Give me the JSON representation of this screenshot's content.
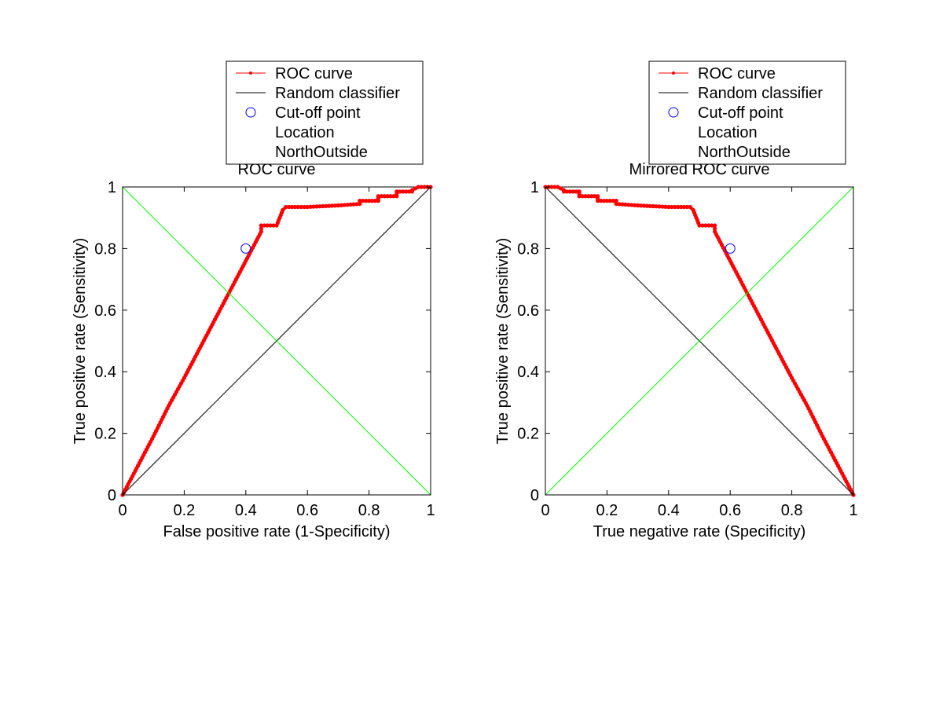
{
  "figure": {
    "background": "#ffffff"
  },
  "chart_data": [
    {
      "type": "line",
      "title": "ROC curve",
      "xlabel": "False positive rate (1-Specificity)",
      "ylabel": "True positive rate (Sensitivity)",
      "xlim": [
        0,
        1
      ],
      "ylim": [
        0,
        1
      ],
      "xticks": [
        0,
        0.2,
        0.4,
        0.6,
        0.8,
        1
      ],
      "xtick_labels": [
        "0",
        "0.2",
        "0.4",
        "0.6",
        "0.8",
        "1"
      ],
      "yticks": [
        0,
        0.2,
        0.4,
        0.6,
        0.8,
        1
      ],
      "ytick_labels": [
        "0",
        "0.2",
        "0.4",
        "0.6",
        "0.8",
        "1"
      ],
      "grid": false,
      "legend": {
        "placement": "north-outside",
        "entries": [
          "ROC curve",
          "Random classifier",
          "Cut-off point",
          "Location",
          "NorthOutside"
        ]
      },
      "series": [
        {
          "name": "ROC curve",
          "style": "line-with-point-markers",
          "color": "#ff0000",
          "x": [
            0,
            0.05,
            0.1,
            0.15,
            0.2,
            0.25,
            0.3,
            0.35,
            0.4,
            0.45,
            0.45,
            0.5,
            0.51,
            0.52,
            0.53,
            0.6,
            0.7,
            0.77,
            0.77,
            0.83,
            0.83,
            0.89,
            0.89,
            0.94,
            0.94,
            0.96,
            1.0
          ],
          "y": [
            0,
            0.095,
            0.19,
            0.29,
            0.38,
            0.475,
            0.57,
            0.665,
            0.76,
            0.855,
            0.875,
            0.875,
            0.9,
            0.925,
            0.935,
            0.935,
            0.94,
            0.945,
            0.955,
            0.955,
            0.97,
            0.97,
            0.985,
            0.985,
            0.99,
            1.0,
            1.0
          ]
        },
        {
          "name": "Random classifier",
          "style": "line",
          "color": "#000000",
          "x": [
            0,
            1
          ],
          "y": [
            0,
            1
          ]
        },
        {
          "name": "",
          "style": "line",
          "color": "#00ff00",
          "x": [
            0,
            1
          ],
          "y": [
            1,
            0
          ]
        },
        {
          "name": "Cut-off point",
          "style": "open-circle-marker",
          "color": "#0000ff",
          "x": [
            0.4
          ],
          "y": [
            0.8
          ]
        }
      ]
    },
    {
      "type": "line",
      "title": "Mirrored ROC curve",
      "xlabel": "True negative rate (Specificity)",
      "ylabel": "True positive rate (Sensitivity)",
      "xlim": [
        0,
        1
      ],
      "ylim": [
        0,
        1
      ],
      "xticks": [
        0,
        0.2,
        0.4,
        0.6,
        0.8,
        1
      ],
      "xtick_labels": [
        "0",
        "0.2",
        "0.4",
        "0.6",
        "0.8",
        "1"
      ],
      "yticks": [
        0,
        0.2,
        0.4,
        0.6,
        0.8,
        1
      ],
      "ytick_labels": [
        "0",
        "0.2",
        "0.4",
        "0.6",
        "0.8",
        "1"
      ],
      "grid": false,
      "legend": {
        "placement": "north-outside",
        "entries": [
          "ROC curve",
          "Random classifier",
          "Cut-off point",
          "Location",
          "NorthOutside"
        ]
      },
      "series": [
        {
          "name": "ROC curve",
          "style": "line-with-point-markers",
          "color": "#ff0000",
          "x": [
            1.0,
            0.95,
            0.9,
            0.85,
            0.8,
            0.75,
            0.7,
            0.65,
            0.6,
            0.55,
            0.55,
            0.5,
            0.49,
            0.48,
            0.47,
            0.4,
            0.3,
            0.23,
            0.23,
            0.17,
            0.17,
            0.11,
            0.11,
            0.06,
            0.06,
            0.04,
            0.0
          ],
          "y": [
            0,
            0.095,
            0.19,
            0.29,
            0.38,
            0.475,
            0.57,
            0.665,
            0.76,
            0.855,
            0.875,
            0.875,
            0.9,
            0.925,
            0.935,
            0.935,
            0.94,
            0.945,
            0.955,
            0.955,
            0.97,
            0.97,
            0.985,
            0.985,
            0.99,
            1.0,
            1.0
          ]
        },
        {
          "name": "Random classifier",
          "style": "line",
          "color": "#000000",
          "x": [
            0,
            1
          ],
          "y": [
            1,
            0
          ]
        },
        {
          "name": "",
          "style": "line",
          "color": "#00ff00",
          "x": [
            0,
            1
          ],
          "y": [
            0,
            1
          ]
        },
        {
          "name": "Cut-off point",
          "style": "open-circle-marker",
          "color": "#0000ff",
          "x": [
            0.6
          ],
          "y": [
            0.8
          ]
        }
      ]
    }
  ]
}
